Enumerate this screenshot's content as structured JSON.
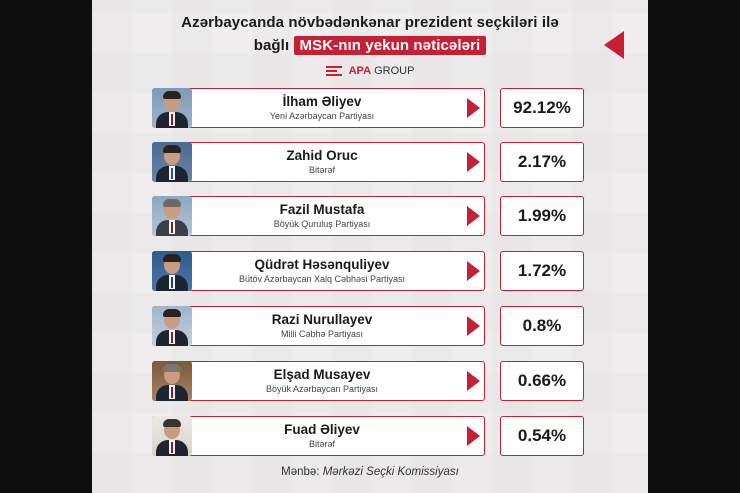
{
  "header": {
    "title_line1": "Azərbaycanda növbədənkənar prezident seçkiləri ilə",
    "title_line2_plain": "bağlı",
    "title_line2_highlight": "MSK-nın yekun nəticələri"
  },
  "brand": {
    "name": "APA",
    "suffix": "GROUP"
  },
  "candidates": [
    {
      "name": "İlham Əliyev",
      "party": "Yeni Azərbaycan Partiyası",
      "percent": "92.12%"
    },
    {
      "name": "Zahid Oruc",
      "party": "Bitərəf",
      "percent": "2.17%"
    },
    {
      "name": "Fazil Mustafa",
      "party": "Böyük Quruluş Partiyası",
      "percent": "1.99%"
    },
    {
      "name": "Qüdrət Həsənquliyev",
      "party": "Bütöv Azərbaycan Xalq Cəbhəsi Partiyası",
      "percent": "1.72%"
    },
    {
      "name": "Razi Nurullayev",
      "party": "Milli Cəbhə Partiyası",
      "percent": "0.8%"
    },
    {
      "name": "Elşad Musayev",
      "party": "Böyük Azərbaycan Partiyası",
      "percent": "0.66%"
    },
    {
      "name": "Fuad Əliyev",
      "party": "Bitərəf",
      "percent": "0.54%"
    }
  ],
  "source": {
    "label": "Mənbə:",
    "value": "Mərkəzi Seçki Komissiyası"
  },
  "colors": {
    "accent": "#c62034",
    "background": "#efeded"
  }
}
